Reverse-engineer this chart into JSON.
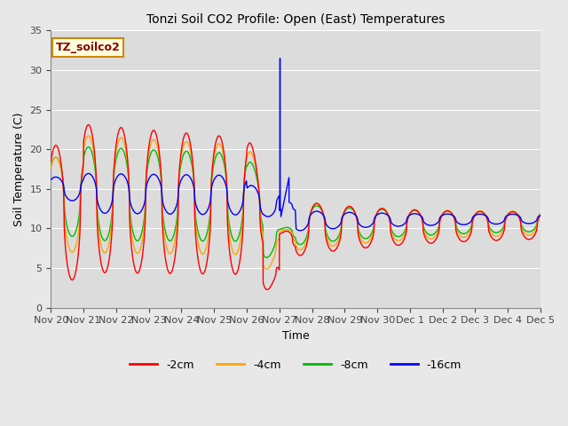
{
  "title": "Tonzi Soil CO2 Profile: Open (East) Temperatures",
  "ylabel": "Soil Temperature (C)",
  "xlabel": "Time",
  "annotation": "TZ_soilco2",
  "fig_bg_color": "#e8e8e8",
  "plot_bg_color": "#e0e0e0",
  "ylim": [
    0,
    35
  ],
  "yticks": [
    0,
    5,
    10,
    15,
    20,
    25,
    30,
    35
  ],
  "colors": {
    "-2cm": "#ff0000",
    "-4cm": "#ffa500",
    "-8cm": "#00bb00",
    "-16cm": "#0000ff"
  },
  "legend_labels": [
    "-2cm",
    "-4cm",
    "-8cm",
    "-16cm"
  ],
  "xtick_labels": [
    "Nov 20",
    "Nov 21",
    "Nov 22",
    "Nov 23",
    "Nov 24",
    "Nov 25",
    "Nov 26",
    "Nov 27",
    "Nov 28",
    "Nov 29",
    "Nov 30",
    "Dec 1",
    "Dec 2",
    "Dec 3",
    "Dec 4",
    "Dec 5"
  ]
}
